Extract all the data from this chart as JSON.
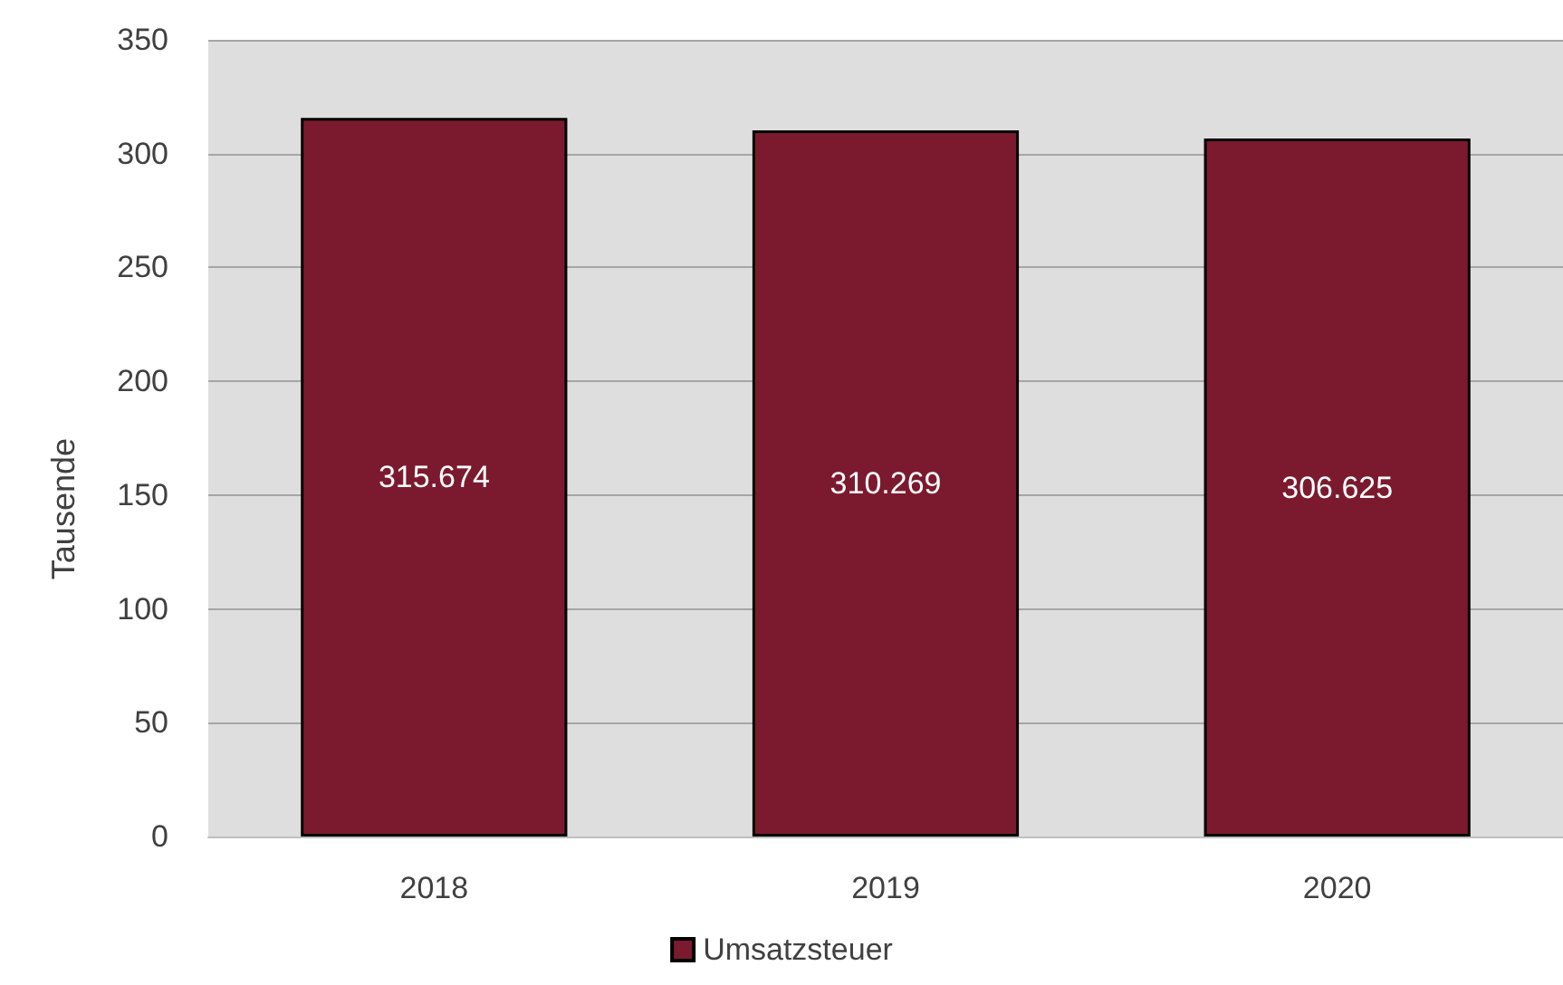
{
  "chart_data": {
    "type": "bar",
    "ylabel": "Tausende",
    "categories": [
      "2018",
      "2019",
      "2020"
    ],
    "series": [
      {
        "name": "Umsatzsteuer",
        "color": "#7b1a2e",
        "values": [
          315.674,
          310.269,
          306.625
        ]
      }
    ],
    "ylim": [
      0,
      350
    ],
    "yticks": [
      0,
      50,
      100,
      150,
      200,
      250,
      300,
      350
    ],
    "grid": "y",
    "legend": "bottom",
    "data_labels": true
  }
}
